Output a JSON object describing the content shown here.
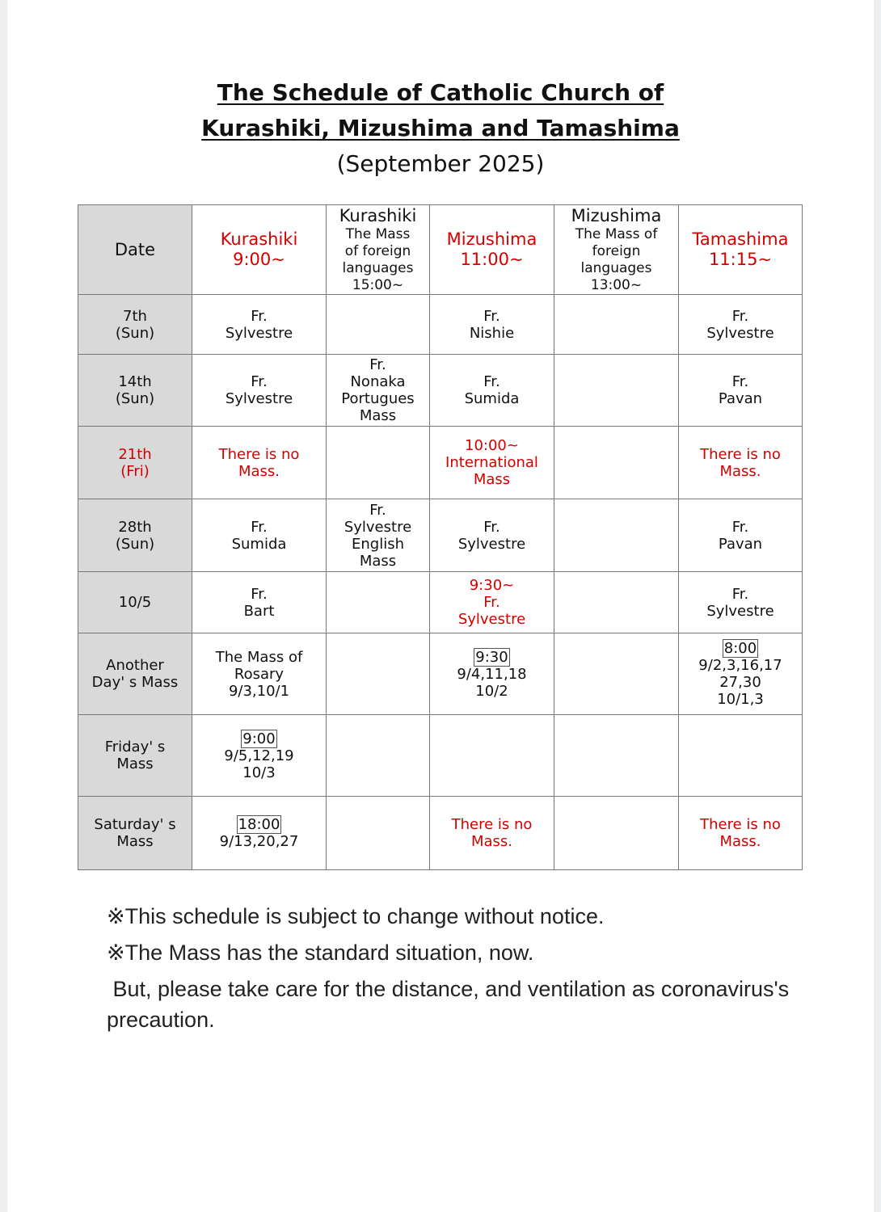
{
  "title_line1": "The Schedule of Catholic Church of",
  "title_line2": "Kurashiki, Mizushima and Tamashima",
  "subtitle": "(September 2025)",
  "colors": {
    "accent_red": "#d40000",
    "date_col_bg": "#d9d9d9"
  },
  "header": [
    {
      "lines": [
        "Date"
      ],
      "red": false
    },
    {
      "lines": [
        "Kurashiki",
        "9:00~"
      ],
      "red": true
    },
    {
      "lines": [
        "Kurashiki",
        "The Mass",
        "of foreign",
        "languages",
        "15:00~"
      ],
      "red": false
    },
    {
      "lines": [
        "Mizushima",
        "11:00~"
      ],
      "red": true
    },
    {
      "lines": [
        "Mizushima",
        "The Mass of",
        "foreign",
        "languages",
        "13:00~"
      ],
      "red": false
    },
    {
      "lines": [
        "Tamashima",
        "11:15~"
      ],
      "red": true
    }
  ],
  "rows": [
    {
      "date": {
        "lines": [
          "7th",
          "(Sun)"
        ],
        "red": false
      },
      "cells": [
        {
          "lines": [
            "Fr.",
            "Sylvestre"
          ]
        },
        {
          "lines": []
        },
        {
          "lines": [
            "Fr.",
            "Nishie"
          ]
        },
        {
          "lines": []
        },
        {
          "lines": [
            "Fr.",
            "Sylvestre"
          ]
        }
      ]
    },
    {
      "date": {
        "lines": [
          "14th",
          "(Sun)"
        ],
        "red": false
      },
      "cells": [
        {
          "lines": [
            "Fr.",
            "Sylvestre"
          ]
        },
        {
          "lines": [
            "Fr.",
            "Nonaka",
            "Portugues",
            "Mass"
          ]
        },
        {
          "lines": [
            "Fr.",
            "Sumida"
          ]
        },
        {
          "lines": []
        },
        {
          "lines": [
            "Fr.",
            "Pavan"
          ]
        }
      ]
    },
    {
      "date": {
        "lines": [
          "21th",
          "(Fri)"
        ],
        "red": true
      },
      "cells": [
        {
          "lines": [
            "There is no",
            "Mass."
          ],
          "red": true
        },
        {
          "lines": []
        },
        {
          "lines": [
            "10:00~",
            "International",
            "Mass"
          ],
          "red": true
        },
        {
          "lines": []
        },
        {
          "lines": [
            "There is no",
            "Mass."
          ],
          "red": true
        }
      ]
    },
    {
      "date": {
        "lines": [
          "28th",
          "(Sun)"
        ],
        "red": false
      },
      "cells": [
        {
          "lines": [
            "Fr.",
            "Sumida"
          ]
        },
        {
          "lines": [
            "Fr.",
            "Sylvestre",
            "English",
            "Mass"
          ]
        },
        {
          "lines": [
            "Fr.",
            "Sylvestre"
          ]
        },
        {
          "lines": []
        },
        {
          "lines": [
            "Fr.",
            "Pavan"
          ]
        }
      ]
    },
    {
      "date": {
        "lines": [
          "10/5"
        ],
        "red": false
      },
      "cells": [
        {
          "lines": [
            "Fr.",
            "Bart"
          ]
        },
        {
          "lines": []
        },
        {
          "lines": [
            "9:30~",
            "Fr.",
            "Sylvestre"
          ],
          "red": true
        },
        {
          "lines": []
        },
        {
          "lines": [
            "Fr.",
            "Sylvestre"
          ]
        }
      ]
    },
    {
      "date": {
        "lines": [
          "Another",
          "Day' s Mass"
        ],
        "red": false
      },
      "cells": [
        {
          "lines": [
            "The Mass of",
            "Rosary",
            "9/3,10/1"
          ]
        },
        {
          "lines": []
        },
        {
          "lines": [
            "9:30",
            "9/4,11,18",
            "10/2"
          ],
          "boxed": true
        },
        {
          "lines": []
        },
        {
          "lines": [
            "8:00",
            "9/2,3,16,17",
            "27,30",
            "10/1,3"
          ],
          "boxed": true
        }
      ]
    },
    {
      "date": {
        "lines": [
          "Friday' s",
          "Mass"
        ],
        "red": false
      },
      "cells": [
        {
          "lines": [
            "9:00",
            "9/5,12,19",
            "10/3"
          ],
          "boxed": true
        },
        {
          "lines": []
        },
        {
          "lines": []
        },
        {
          "lines": []
        },
        {
          "lines": []
        }
      ]
    },
    {
      "date": {
        "lines": [
          "Saturday' s",
          "Mass"
        ],
        "red": false
      },
      "cells": [
        {
          "lines": [
            "18:00",
            "9/13,20,27"
          ],
          "boxed": true
        },
        {
          "lines": []
        },
        {
          "lines": [
            "There is no",
            "Mass."
          ],
          "red": true
        },
        {
          "lines": []
        },
        {
          "lines": [
            "There is no",
            "Mass."
          ],
          "red": true
        }
      ]
    }
  ],
  "notes": [
    "※This schedule is subject to change without notice.",
    "※The Mass has the standard situation, now.",
    " But, please take care for the distance, and ventilation as coronavirus's precaution."
  ]
}
